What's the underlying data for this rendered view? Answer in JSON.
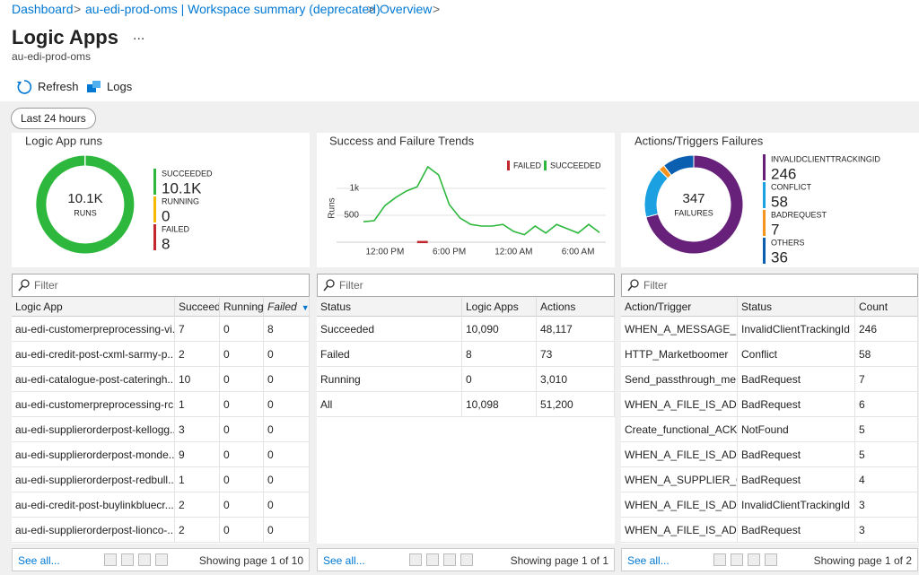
{
  "breadcrumb": [
    "Dashboard",
    "au-edi-prod-oms | Workspace summary (deprecated)",
    "Overview"
  ],
  "header": {
    "title": "Logic Apps",
    "more": "...",
    "subtitle": "au-edi-prod-oms"
  },
  "toolbar": [
    "Refresh",
    "Logs"
  ],
  "time_range": "Last 24 hours",
  "chart_data": [
    {
      "type": "donut",
      "title": "Logic App runs",
      "center_label": "10.1K",
      "center_caption": "RUNS",
      "categories": [
        "SUCCEEDED",
        "RUNNING",
        "FAILED"
      ],
      "values": [
        10090,
        0,
        8
      ],
      "value_labels": [
        "10.1K",
        "0",
        "8"
      ],
      "colors": [
        "#2db83d",
        "#f7b900",
        "#c4262e"
      ]
    },
    {
      "type": "line",
      "title": "Success and Failure Trends",
      "y_label": "Runs",
      "categories": [
        null,
        null,
        "12:00 PM",
        null,
        null,
        null,
        null,
        null,
        "6:00 PM",
        null,
        null,
        null,
        null,
        null,
        "12:00 AM",
        null,
        null,
        null,
        null,
        null,
        "6:00 AM",
        null,
        null
      ],
      "series": [
        {
          "name": "FAILED",
          "color": "#c4262e",
          "values": [
            null,
            null,
            null,
            null,
            null,
            4,
            4,
            null,
            null,
            null,
            null,
            null,
            null,
            null,
            null,
            null,
            null,
            null,
            null,
            null,
            null,
            null,
            null
          ]
        },
        {
          "name": "SUCCEEDED",
          "color": "#2db83d",
          "values": [
            380,
            400,
            680,
            830,
            950,
            1030,
            1400,
            1250,
            700,
            450,
            330,
            300,
            300,
            330,
            200,
            140,
            300,
            170,
            330,
            250,
            170,
            330,
            180
          ]
        }
      ],
      "ylim": [
        0,
        1500
      ],
      "yticks": [
        500,
        {
          "value": 1000,
          "label": "1k"
        }
      ],
      "grid": true
    },
    {
      "type": "donut",
      "title": "Actions/Triggers Failures",
      "center_label": "347",
      "center_caption": "FAILURES",
      "categories": [
        "INVALIDCLIENTTRACKINGID",
        "CONFLICT",
        "BADREQUEST",
        "OTHERS"
      ],
      "values": [
        246,
        58,
        7,
        36
      ],
      "colors": [
        "#68217a",
        "#1ba1e2",
        "#f7941d",
        "#0b5fb0"
      ]
    }
  ],
  "tables": [
    {
      "filter": "Filter",
      "columns": [
        "Logic App",
        "Succeede",
        "Running",
        "Failed"
      ],
      "sorted": 3,
      "rows": [
        [
          "au-edi-customerpreprocessing-vi...",
          "7",
          "0",
          "8"
        ],
        [
          "au-edi-credit-post-cxml-sarmy-p...",
          "2",
          "0",
          "0"
        ],
        [
          "au-edi-catalogue-post-cateringh...",
          "10",
          "0",
          "0"
        ],
        [
          "au-edi-customerpreprocessing-rc...",
          "1",
          "0",
          "0"
        ],
        [
          "au-edi-supplierorderpost-kellogg...",
          "3",
          "0",
          "0"
        ],
        [
          "au-edi-supplierorderpost-monde...",
          "9",
          "0",
          "0"
        ],
        [
          "au-edi-supplierorderpost-redbull...",
          "1",
          "0",
          "0"
        ],
        [
          "au-edi-credit-post-buylinkbluecr...",
          "2",
          "0",
          "0"
        ],
        [
          "au-edi-supplierorderpost-lionco-...",
          "2",
          "0",
          "0"
        ]
      ],
      "footer": {
        "link": "See all...",
        "status": "Showing page 1 of 10"
      }
    },
    {
      "filter": "Filter",
      "columns": [
        "Status",
        "Logic Apps",
        "Actions"
      ],
      "rows": [
        [
          "Succeeded",
          "10,090",
          "48,117"
        ],
        [
          "Failed",
          "8",
          "73"
        ],
        [
          "Running",
          "0",
          "3,010"
        ],
        [
          "All",
          "10,098",
          "51,200"
        ]
      ],
      "footer": {
        "link": "See all...",
        "status": "Showing page 1 of 1"
      }
    },
    {
      "filter": "Filter",
      "columns": [
        "Action/Trigger",
        "Status",
        "Count"
      ],
      "rows": [
        [
          "WHEN_A_MESSAGE_IS...",
          "InvalidClientTrackingId",
          "246"
        ],
        [
          "HTTP_Marketboomer",
          "Conflict",
          "58"
        ],
        [
          "Send_passthrough_me...",
          "BadRequest",
          "7"
        ],
        [
          "WHEN_A_FILE_IS_ADD...",
          "BadRequest",
          "6"
        ],
        [
          "Create_functional_ACK...",
          "NotFound",
          "5"
        ],
        [
          "WHEN_A_FILE_IS_ADD...",
          "BadRequest",
          "5"
        ],
        [
          "WHEN_A_SUPPLIER_C...",
          "BadRequest",
          "4"
        ],
        [
          "WHEN_A_FILE_IS_ADD...",
          "InvalidClientTrackingId",
          "3"
        ],
        [
          "WHEN_A_FILE_IS_ADD...",
          "BadRequest",
          "3"
        ]
      ],
      "footer": {
        "link": "See all...",
        "status": "Showing page 1 of 2"
      }
    }
  ]
}
